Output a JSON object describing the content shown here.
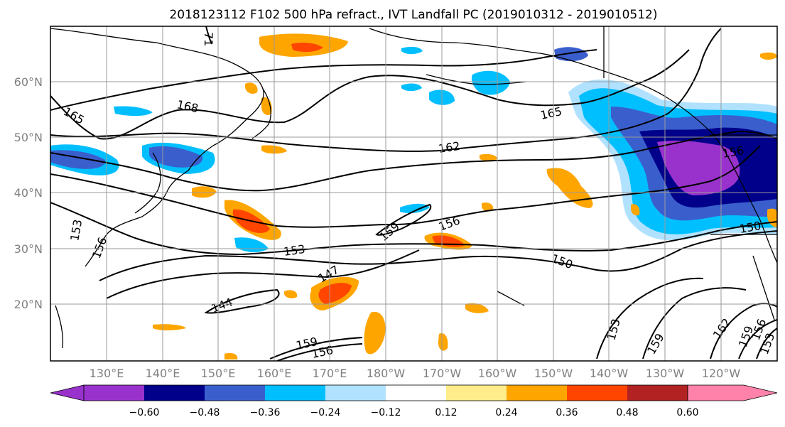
{
  "title": "2018123112 F102 500 hPa refract., IVT Landfall PC (2019010312 - 2019010512)",
  "map": {
    "lat_labels": [
      "60°N",
      "50°N",
      "40°N",
      "30°N",
      "20°N"
    ],
    "lon_labels": [
      "130°E",
      "140°E",
      "150°E",
      "160°E",
      "170°E",
      "180°W",
      "170°W",
      "160°W",
      "150°W",
      "140°W",
      "130°W",
      "120°W"
    ],
    "contour_labels": [
      "168",
      "165",
      "165",
      "162",
      "159",
      "156",
      "153",
      "150",
      "147",
      "144",
      "156",
      "153",
      "150",
      "156",
      "153",
      "159",
      "162",
      "159",
      "156",
      "153",
      "159",
      "156",
      "71"
    ]
  },
  "colorbar": {
    "ticks": [
      "−0.60",
      "−0.48",
      "−0.36",
      "−0.24",
      "−0.12",
      "0.12",
      "0.24",
      "0.36",
      "0.48",
      "0.60"
    ],
    "colors": [
      "#9932cc",
      "#00008b",
      "#3a5fcd",
      "#00bfff",
      "#b0e2ff",
      "#ffffff",
      "#ffec8b",
      "#ffa500",
      "#ff4500",
      "#b22222",
      "#ff82ab"
    ]
  }
}
